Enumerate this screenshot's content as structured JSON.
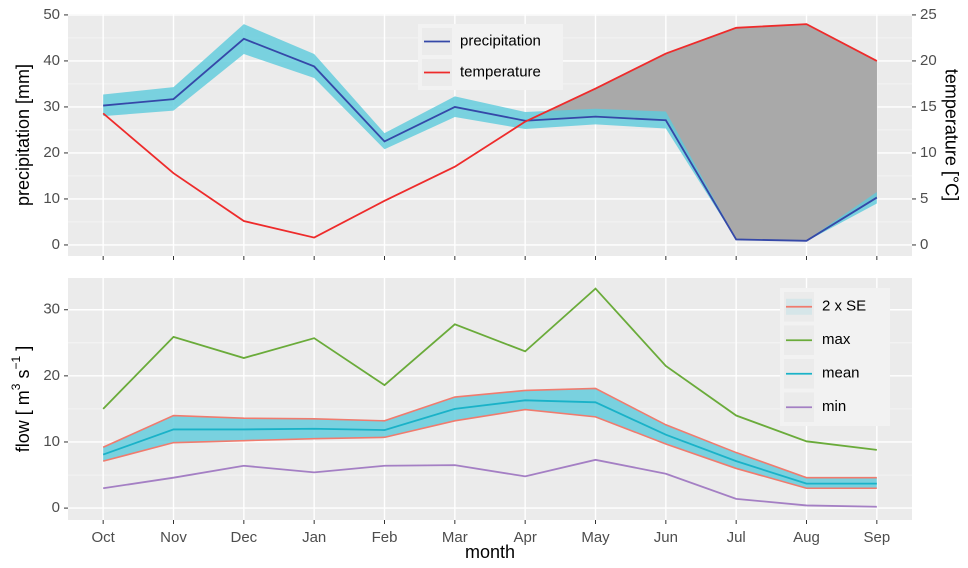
{
  "chart_data": [
    {
      "type": "line",
      "ylabel": "precipitation [mm]",
      "y2label": "temperature [°C]",
      "ylim": [
        -2.4,
        50.2
      ],
      "yticks": [
        0,
        10,
        20,
        30,
        40,
        50
      ],
      "yminorticks": [
        5,
        15,
        25,
        35,
        45
      ],
      "y2lim": [
        -1.2,
        25.1
      ],
      "y2ticks": [
        0,
        5,
        10,
        15,
        20,
        25
      ],
      "grid": true,
      "legend": "top-center",
      "shade_color": "#a9a9a9",
      "series": [
        {
          "name": "precipitation",
          "color": "#3548a8",
          "band_color": "#5ccbdc",
          "values": [
            30.3,
            31.7,
            44.8,
            38.8,
            22.5,
            30.0,
            27.0,
            27.9,
            27.1,
            1.2,
            0.9,
            10.3
          ],
          "lower": [
            28.0,
            29.2,
            41.5,
            36.3,
            20.8,
            27.8,
            25.2,
            26.2,
            25.3,
            1.1,
            0.8,
            9.0
          ],
          "upper": [
            32.7,
            34.3,
            48.0,
            41.5,
            24.3,
            32.3,
            28.9,
            29.6,
            29.0,
            1.3,
            1.0,
            11.5
          ]
        },
        {
          "name": "temperature",
          "color": "#ee2b2b",
          "axis": "y2",
          "values": [
            14.3,
            7.8,
            2.6,
            0.8,
            4.8,
            8.5,
            13.4,
            17.0,
            20.8,
            23.6,
            24.0,
            20.0
          ]
        }
      ]
    },
    {
      "type": "line",
      "xlabel": "month",
      "ylabel": [
        "flow  [ m",
        "3",
        " s",
        "−1",
        " ]"
      ],
      "categories": [
        "Oct",
        "Nov",
        "Dec",
        "Jan",
        "Feb",
        "Mar",
        "Apr",
        "May",
        "Jun",
        "Jul",
        "Aug",
        "Sep"
      ],
      "ylim": [
        -1.8,
        34.8
      ],
      "yticks": [
        0,
        10,
        20,
        30
      ],
      "yminorticks": [
        5,
        15,
        25
      ],
      "grid": true,
      "legend": "top-right",
      "series": [
        {
          "name": "2 x SE",
          "color": "#f07b6e",
          "band_color": "#5ccbdc",
          "lower": [
            7.1,
            9.9,
            10.2,
            10.5,
            10.7,
            13.2,
            14.9,
            13.8,
            9.7,
            6.0,
            3.0,
            3.0
          ],
          "upper": [
            9.2,
            14.0,
            13.6,
            13.5,
            13.2,
            16.8,
            17.8,
            18.1,
            12.6,
            8.4,
            4.6,
            4.6
          ]
        },
        {
          "name": "max",
          "color": "#6aab3a",
          "values": [
            15.0,
            25.9,
            22.7,
            25.7,
            18.6,
            27.8,
            23.7,
            33.2,
            21.5,
            14.0,
            10.1,
            8.8
          ]
        },
        {
          "name": "mean",
          "color": "#1ab2c8",
          "values": [
            8.1,
            11.9,
            11.9,
            12.0,
            11.8,
            15.0,
            16.3,
            16.0,
            11.1,
            7.1,
            3.7,
            3.7
          ]
        },
        {
          "name": "min",
          "color": "#a47fc4",
          "values": [
            3.0,
            4.6,
            6.4,
            5.4,
            6.4,
            6.5,
            4.8,
            7.3,
            5.2,
            1.4,
            0.4,
            0.2
          ]
        }
      ]
    }
  ]
}
